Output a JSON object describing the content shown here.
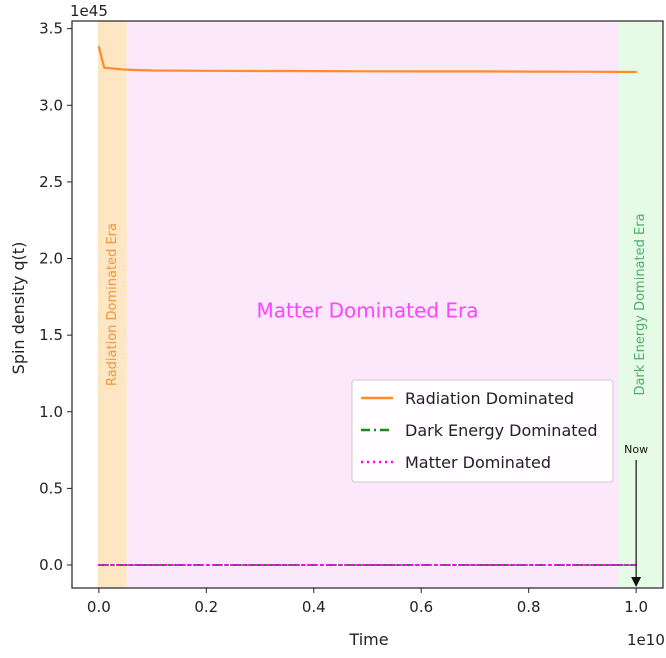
{
  "chart_data": {
    "type": "line",
    "title": "",
    "xlabel": "Time",
    "ylabel": "Spin density q(t)",
    "x_offset_text": "1e10",
    "y_offset_text": "1e45",
    "xlim": [
      -0.05,
      1.05
    ],
    "ylim": [
      -0.15,
      3.55
    ],
    "x_ticks": [
      0.0,
      0.2,
      0.4,
      0.6,
      0.8,
      1.0
    ],
    "x_tick_labels": [
      "0.0",
      "0.2",
      "0.4",
      "0.6",
      "0.8",
      "1.0"
    ],
    "y_ticks": [
      0.0,
      0.5,
      1.0,
      1.5,
      2.0,
      2.5,
      3.0,
      3.5
    ],
    "y_tick_labels": [
      "0.0",
      "0.5",
      "1.0",
      "1.5",
      "2.0",
      "2.5",
      "3.0",
      "3.5"
    ],
    "grid": false,
    "legend_position": "lower-right",
    "regions": [
      {
        "label": "Radiation Dominated Era",
        "x_start": -0.002,
        "x_end": 0.052,
        "color": "#ffe6c2",
        "text_color": "#f0963c",
        "orientation": "vertical"
      },
      {
        "label": "Matter Dominated Era",
        "x_start": 0.052,
        "x_end": 0.967,
        "color": "#fbe8fb",
        "text_color": "#ff44ff",
        "orientation": "horizontal"
      },
      {
        "label": "Dark Energy Dominated Era",
        "x_start": 0.967,
        "x_end": 1.05,
        "color": "#e6fbe6",
        "text_color": "#4caf6a",
        "orientation": "vertical"
      }
    ],
    "series": [
      {
        "name": "Radiation Dominated",
        "color": "#ff8c2a",
        "style": "solid",
        "x": [
          0.0,
          0.01,
          0.05,
          0.1,
          0.2,
          0.3,
          0.4,
          0.5,
          0.6,
          0.7,
          0.8,
          0.9,
          1.0
        ],
        "y": [
          3.38,
          3.245,
          3.232,
          3.227,
          3.225,
          3.224,
          3.223,
          3.222,
          3.221,
          3.221,
          3.22,
          3.219,
          3.217
        ]
      },
      {
        "name": "Dark Energy Dominated",
        "color": "#1a8a1a",
        "style": "dashdot",
        "x": [
          0.0,
          1.0
        ],
        "y": [
          0.0,
          0.0
        ]
      },
      {
        "name": "Matter Dominated",
        "color": "#ff00ff",
        "style": "dotted",
        "x": [
          0.0,
          1.0
        ],
        "y": [
          0.0,
          0.0
        ]
      }
    ],
    "annotations": [
      {
        "text": "Now",
        "x": 1.0,
        "arrow": "down"
      }
    ]
  }
}
